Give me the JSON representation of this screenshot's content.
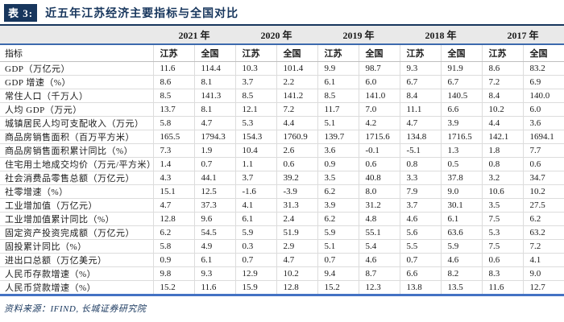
{
  "title": {
    "tag": "表 3:",
    "text": "近五年江苏经济主要指标与全国对比"
  },
  "table": {
    "indicator_header": "指标",
    "years": [
      "2021 年",
      "2020 年",
      "2019 年",
      "2018 年",
      "2017 年"
    ],
    "region_headers": [
      "江苏",
      "全国"
    ],
    "rows": [
      {
        "label": "GDP（万亿元）",
        "values": [
          "11.6",
          "114.4",
          "10.3",
          "101.4",
          "9.9",
          "98.7",
          "9.3",
          "91.9",
          "8.6",
          "83.2"
        ]
      },
      {
        "label": "GDP 增速（%）",
        "values": [
          "8.6",
          "8.1",
          "3.7",
          "2.2",
          "6.1",
          "6.0",
          "6.7",
          "6.7",
          "7.2",
          "6.9"
        ]
      },
      {
        "label": "常住人口（千万人）",
        "values": [
          "8.5",
          "141.3",
          "8.5",
          "141.2",
          "8.5",
          "141.0",
          "8.4",
          "140.5",
          "8.4",
          "140.0"
        ]
      },
      {
        "label": "人均 GDP（万元）",
        "values": [
          "13.7",
          "8.1",
          "12.1",
          "7.2",
          "11.7",
          "7.0",
          "11.1",
          "6.6",
          "10.2",
          "6.0"
        ]
      },
      {
        "label": "城镇居民人均可支配收入（万元）",
        "values": [
          "5.8",
          "4.7",
          "5.3",
          "4.4",
          "5.1",
          "4.2",
          "4.7",
          "3.9",
          "4.4",
          "3.6"
        ]
      },
      {
        "label": "商品房销售面积（百万平方米）",
        "values": [
          "165.5",
          "1794.3",
          "154.3",
          "1760.9",
          "139.7",
          "1715.6",
          "134.8",
          "1716.5",
          "142.1",
          "1694.1"
        ]
      },
      {
        "label": "商品房销售面积累计同比（%）",
        "values": [
          "7.3",
          "1.9",
          "10.4",
          "2.6",
          "3.6",
          "-0.1",
          "-5.1",
          "1.3",
          "1.8",
          "7.7"
        ]
      },
      {
        "label": "住宅用土地成交均价（万元/平方米）",
        "values": [
          "1.4",
          "0.7",
          "1.1",
          "0.6",
          "0.9",
          "0.6",
          "0.8",
          "0.5",
          "0.8",
          "0.6"
        ]
      },
      {
        "label": "社会消费品零售总额（万亿元）",
        "values": [
          "4.3",
          "44.1",
          "3.7",
          "39.2",
          "3.5",
          "40.8",
          "3.3",
          "37.8",
          "3.2",
          "34.7"
        ]
      },
      {
        "label": "社零增速（%）",
        "values": [
          "15.1",
          "12.5",
          "-1.6",
          "-3.9",
          "6.2",
          "8.0",
          "7.9",
          "9.0",
          "10.6",
          "10.2"
        ]
      },
      {
        "label": "工业增加值（万亿元）",
        "values": [
          "4.7",
          "37.3",
          "4.1",
          "31.3",
          "3.9",
          "31.2",
          "3.7",
          "30.1",
          "3.5",
          "27.5"
        ]
      },
      {
        "label": "工业增加值累计同比（%）",
        "values": [
          "12.8",
          "9.6",
          "6.1",
          "2.4",
          "6.2",
          "4.8",
          "4.6",
          "6.1",
          "7.5",
          "6.2"
        ]
      },
      {
        "label": "固定资产投资完成额（万亿元）",
        "values": [
          "6.2",
          "54.5",
          "5.9",
          "51.9",
          "5.9",
          "55.1",
          "5.6",
          "63.6",
          "5.3",
          "63.2"
        ]
      },
      {
        "label": "固投累计同比（%）",
        "values": [
          "5.8",
          "4.9",
          "0.3",
          "2.9",
          "5.1",
          "5.4",
          "5.5",
          "5.9",
          "7.5",
          "7.2"
        ]
      },
      {
        "label": "进出口总额（万亿美元）",
        "values": [
          "0.9",
          "6.1",
          "0.7",
          "4.7",
          "0.7",
          "4.6",
          "0.7",
          "4.6",
          "0.6",
          "4.1"
        ]
      },
      {
        "label": "人民币存款增速（%）",
        "values": [
          "9.8",
          "9.3",
          "12.9",
          "10.2",
          "9.4",
          "8.7",
          "6.6",
          "8.2",
          "8.3",
          "9.0"
        ]
      },
      {
        "label": "人民币贷款增速（%）",
        "values": [
          "15.2",
          "11.6",
          "15.9",
          "12.8",
          "15.2",
          "12.3",
          "13.8",
          "13.5",
          "11.6",
          "12.7"
        ]
      }
    ]
  },
  "footer": {
    "source": "资料来源：IFIND, 长城证券研究院"
  },
  "colors": {
    "navy": "#17365D",
    "header_line_blue": "#3C69AD",
    "bottom_border_blue": "#4472C4",
    "header_bg": "#E9E9E9",
    "row_line": "#DCDCDC"
  }
}
